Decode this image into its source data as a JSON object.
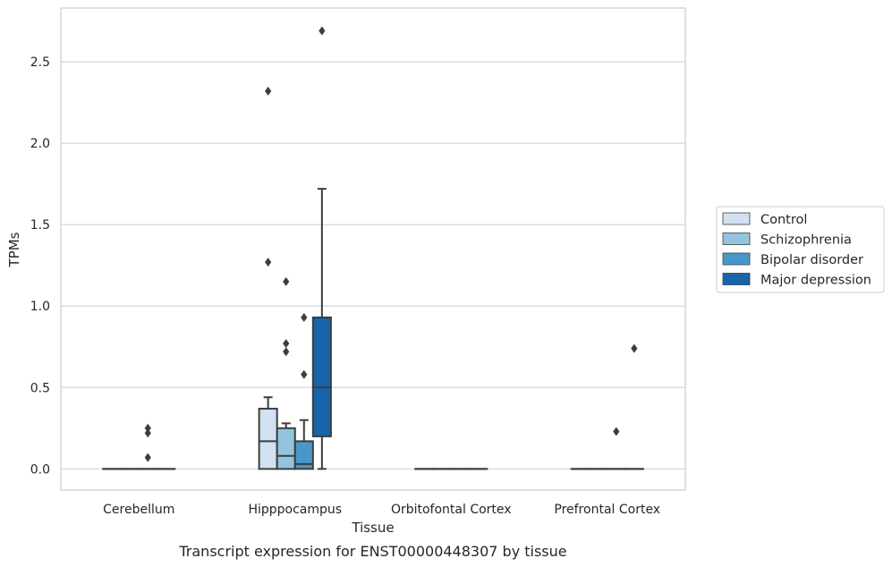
{
  "chart_data": {
    "type": "box",
    "caption": "Transcript expression for ENST00000448307 by tissue",
    "xlabel": "Tissue",
    "ylabel": "TPMs",
    "ylim": [
      -0.13,
      2.83
    ],
    "yticks": [
      0.0,
      0.5,
      1.0,
      1.5,
      2.0,
      2.5
    ],
    "ytick_labels": [
      "0.0",
      "0.5",
      "1.0",
      "1.5",
      "2.0",
      "2.5"
    ],
    "grid": "horizontal",
    "legend_position": "right",
    "categories": [
      "Cerebellum",
      "Hipppocampus",
      "Orbitofontal Cortex",
      "Prefrontal Cortex"
    ],
    "series": [
      {
        "name": "Control",
        "color": "#d0e1f2",
        "boxes": [
          {
            "min": 0,
            "q1": 0,
            "median": 0,
            "q3": 0,
            "max": 0,
            "outliers": []
          },
          {
            "min": 0,
            "q1": 0,
            "median": 0.17,
            "q3": 0.37,
            "max": 0.44,
            "outliers": [
              1.27,
              2.32
            ]
          },
          {
            "min": 0,
            "q1": 0,
            "median": 0,
            "q3": 0,
            "max": 0,
            "outliers": []
          },
          {
            "min": 0,
            "q1": 0,
            "median": 0,
            "q3": 0,
            "max": 0,
            "outliers": []
          }
        ]
      },
      {
        "name": "Schizophrenia",
        "color": "#94c4df",
        "boxes": [
          {
            "min": 0,
            "q1": 0,
            "median": 0,
            "q3": 0,
            "max": 0,
            "outliers": []
          },
          {
            "min": 0,
            "q1": 0,
            "median": 0.08,
            "q3": 0.25,
            "max": 0.28,
            "outliers": [
              0.72,
              0.77,
              1.15
            ]
          },
          {
            "min": 0,
            "q1": 0,
            "median": 0,
            "q3": 0,
            "max": 0,
            "outliers": []
          },
          {
            "min": 0,
            "q1": 0,
            "median": 0,
            "q3": 0,
            "max": 0,
            "outliers": []
          }
        ]
      },
      {
        "name": "Bipolar disorder",
        "color": "#4a98c9",
        "boxes": [
          {
            "min": 0,
            "q1": 0,
            "median": 0,
            "q3": 0,
            "max": 0,
            "outliers": [
              0.07,
              0.22,
              0.25
            ]
          },
          {
            "min": 0,
            "q1": 0,
            "median": 0.03,
            "q3": 0.17,
            "max": 0.3,
            "outliers": [
              0.58,
              0.93
            ]
          },
          {
            "min": 0,
            "q1": 0,
            "median": 0,
            "q3": 0,
            "max": 0,
            "outliers": []
          },
          {
            "min": 0,
            "q1": 0,
            "median": 0,
            "q3": 0,
            "max": 0,
            "outliers": [
              0.23
            ]
          }
        ]
      },
      {
        "name": "Major depression",
        "color": "#1764ab",
        "boxes": [
          {
            "min": 0,
            "q1": 0,
            "median": 0,
            "q3": 0,
            "max": 0,
            "outliers": []
          },
          {
            "min": 0,
            "q1": 0.2,
            "median": 0.5,
            "q3": 0.93,
            "max": 1.72,
            "outliers": [
              2.69
            ]
          },
          {
            "min": 0,
            "q1": 0,
            "median": 0,
            "q3": 0,
            "max": 0,
            "outliers": []
          },
          {
            "min": 0,
            "q1": 0,
            "median": 0,
            "q3": 0,
            "max": 0,
            "outliers": [
              0.74
            ]
          }
        ]
      }
    ]
  }
}
